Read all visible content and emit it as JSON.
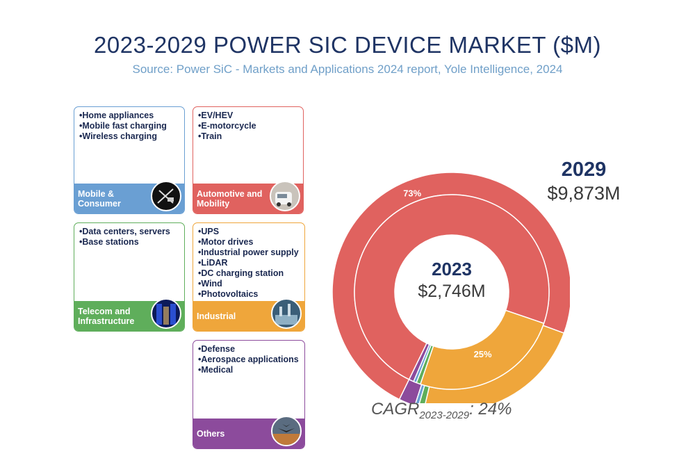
{
  "title": "2023-2029 POWER SIC DEVICE MARKET ($M)",
  "subtitle": "Source: Power SiC - Markets and Applications 2024 report, Yole Intelligence, 2024",
  "segments": [
    {
      "label": "Mobile &\nConsumer",
      "color": "#6a9fd3",
      "icon": "charger-icon",
      "items": [
        "Home appliances",
        "Mobile fast charging",
        "Wireless charging"
      ]
    },
    {
      "label": "Automotive and\nMobility",
      "color": "#e0625f",
      "icon": "car-icon",
      "items": [
        "EV/HEV",
        "E-motorcycle",
        "Train"
      ]
    },
    {
      "label": "Telecom and\nInfrastructure",
      "color": "#5fae5b",
      "icon": "server-icon",
      "items": [
        "Data centers, servers",
        "Base stations"
      ]
    },
    {
      "label": "Industrial",
      "color": "#efa63b",
      "icon": "factory-icon",
      "items": [
        "UPS",
        "Motor drives",
        "Industrial power supply",
        "LiDAR",
        "DC charging station",
        "Wind",
        "Photovoltaics"
      ]
    },
    {
      "label": "Others",
      "color": "#8c4b9c",
      "icon": "aircraft-icon",
      "items": [
        "Defense",
        "Aerospace applications",
        "Medical"
      ]
    }
  ],
  "chart_data": {
    "type": "pie",
    "title": "2023-2029 POWER SIC DEVICE MARKET ($M)",
    "outer": {
      "year": "2029",
      "total": "$9,873M",
      "slices": [
        {
          "segment": "Automotive and Mobility",
          "value": 73,
          "label": "73%"
        },
        {
          "segment": "Industrial",
          "value": 23
        },
        {
          "segment": "Telecom and Infrastructure",
          "value": 0.8
        },
        {
          "segment": "Mobile & Consumer",
          "value": 0.5
        },
        {
          "segment": "Others",
          "value": 2.2
        }
      ]
    },
    "inner": {
      "year": "2023",
      "total": "$2,746M",
      "slices": [
        {
          "segment": "Automotive and Mobility",
          "value": 73
        },
        {
          "segment": "Industrial",
          "value": 25,
          "label": "25%"
        },
        {
          "segment": "Telecom and Infrastructure",
          "value": 0.7
        },
        {
          "segment": "Mobile & Consumer",
          "value": 0.5
        },
        {
          "segment": "Others",
          "value": 0.8
        }
      ]
    },
    "colors": {
      "Automotive and Mobility": "#e0625f",
      "Industrial": "#efa63b",
      "Telecom and Infrastructure": "#5fae5b",
      "Mobile & Consumer": "#6a9fd3",
      "Others": "#8c4b9c"
    }
  },
  "cagr": {
    "prefix": "CAGR",
    "sub": "2023-2029",
    "value": ": 24%"
  }
}
